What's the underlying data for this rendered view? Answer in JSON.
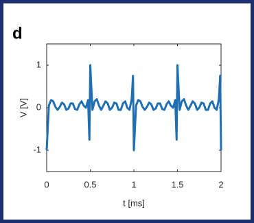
{
  "chart_data": {
    "type": "line",
    "panel_label": "d",
    "x_label": "t [ms]",
    "y_label": "V [V]",
    "xlim": [
      0,
      2
    ],
    "ylim": [
      -1.5,
      1.5
    ],
    "xticks": [
      0,
      0.5,
      1,
      1.5,
      2
    ],
    "yticks": [
      -1,
      0,
      1
    ],
    "x": [
      0,
      0.025,
      0.05,
      0.075,
      0.1,
      0.125,
      0.15,
      0.175,
      0.2,
      0.225,
      0.25,
      0.275,
      0.3,
      0.325,
      0.35,
      0.375,
      0.4,
      0.425,
      0.45,
      0.475,
      0.49,
      0.5,
      0.525,
      0.55,
      0.575,
      0.6,
      0.625,
      0.65,
      0.675,
      0.7,
      0.725,
      0.75,
      0.775,
      0.8,
      0.825,
      0.85,
      0.875,
      0.9,
      0.925,
      0.95,
      0.975,
      0.99,
      1,
      1.025,
      1.05,
      1.075,
      1.1,
      1.125,
      1.15,
      1.175,
      1.2,
      1.225,
      1.25,
      1.275,
      1.3,
      1.325,
      1.35,
      1.375,
      1.4,
      1.425,
      1.45,
      1.475,
      1.49,
      1.5,
      1.525,
      1.55,
      1.575,
      1.6,
      1.625,
      1.65,
      1.675,
      1.7,
      1.725,
      1.75,
      1.775,
      1.8,
      1.825,
      1.85,
      1.875,
      1.9,
      1.925,
      1.95,
      1.975,
      1.99,
      2
    ],
    "series": [
      {
        "color": "#1f6fb2",
        "values": [
          -1,
          0.05,
          0.18,
          0.15,
          0.02,
          -0.05,
          0.02,
          0.12,
          0.08,
          -0.05,
          -0.02,
          0.1,
          0.1,
          -0.03,
          -0.05,
          0.08,
          0.15,
          0.05,
          0,
          0.18,
          -0.75,
          1,
          -0.05,
          0.15,
          0.2,
          0.05,
          -0.05,
          0.05,
          0.15,
          0.1,
          -0.05,
          0,
          0.12,
          0.1,
          -0.05,
          -0.05,
          0.1,
          0.15,
          0,
          -0.05,
          0.2,
          0.75,
          -1,
          0.05,
          0.18,
          0.15,
          0.02,
          -0.05,
          0.02,
          0.12,
          0.08,
          -0.05,
          -0.02,
          0.1,
          0.1,
          -0.03,
          -0.05,
          0.08,
          0.15,
          0.05,
          0,
          0.18,
          -0.75,
          1,
          -0.05,
          0.15,
          0.2,
          0.05,
          -0.05,
          0.05,
          0.15,
          0.1,
          -0.05,
          0,
          0.12,
          0.1,
          -0.05,
          -0.05,
          0.1,
          0.15,
          0,
          -0.05,
          0.2,
          0.75,
          -1
        ]
      }
    ]
  }
}
